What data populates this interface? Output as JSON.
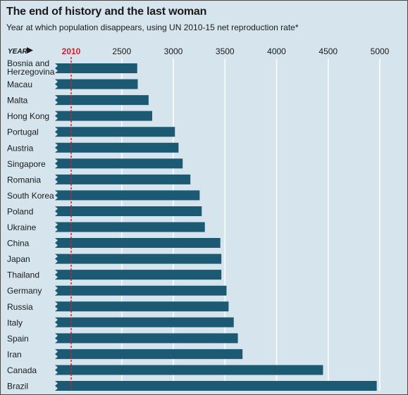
{
  "title": "The end of history and the last woman",
  "subtitle": "Year at which population disappears, using UN 2010-15 net reproduction rate*",
  "colors": {
    "bar": "#1c5a74",
    "reference_line": "#d1202d",
    "grid": "#ffffff",
    "background": "#d6e4ed"
  },
  "chart_data": {
    "type": "bar",
    "orientation": "horizontal",
    "axis_label": "YEAR",
    "axis_label_icon": "right-arrow-icon",
    "reference_year": 2010,
    "xlim": [
      2010,
      5000
    ],
    "x_ticks": [
      2010,
      2500,
      3000,
      3500,
      4000,
      4500,
      5000
    ],
    "gridlines": true,
    "categories": [
      "Bosnia and Herzegovina",
      "Macau",
      "Malta",
      "Hong Kong",
      "Portugal",
      "Austria",
      "Singapore",
      "Romania",
      "South Korea",
      "Poland",
      "Ukraine",
      "China",
      "Japan",
      "Thailand",
      "Germany",
      "Russia",
      "Italy",
      "Spain",
      "Iran",
      "Canada",
      "Brazil"
    ],
    "values": [
      2650,
      2655,
      2760,
      2795,
      3015,
      3050,
      3090,
      3165,
      3255,
      3275,
      3305,
      3455,
      3465,
      3465,
      3515,
      3535,
      3585,
      3625,
      3670,
      4450,
      4970
    ]
  }
}
